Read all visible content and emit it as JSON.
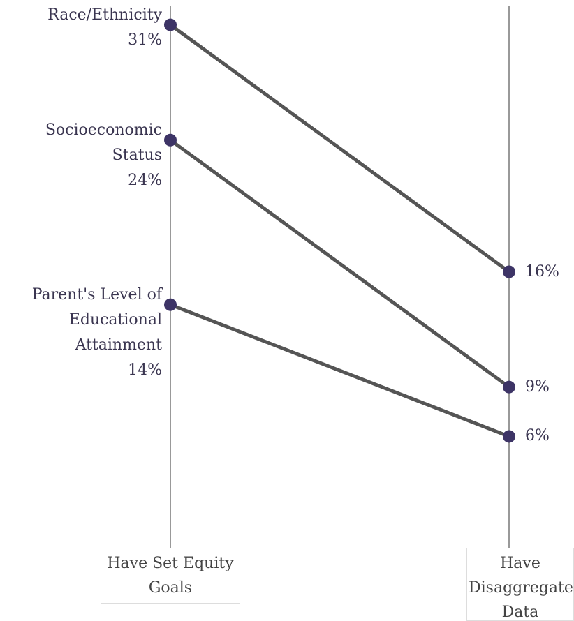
{
  "chart_data": {
    "type": "slope",
    "categories": [
      "Have Set Equity Goals",
      "Have Disaggregated Data"
    ],
    "series": [
      {
        "name": "Race/Ethnicity",
        "color": "#3d3466",
        "values": [
          31,
          16
        ],
        "value_labels": [
          "31%",
          "16%"
        ]
      },
      {
        "name": "Socioeconomic Status",
        "color": "#3d3466",
        "values": [
          24,
          9
        ],
        "value_labels": [
          "24%",
          "9%"
        ]
      },
      {
        "name": "Parent's Level of Educational Attainment",
        "color": "#3d3466",
        "values": [
          14,
          6
        ],
        "value_labels": [
          "14%",
          "6%"
        ]
      }
    ],
    "line_color": "#555555",
    "ylim": [
      0,
      32
    ]
  }
}
